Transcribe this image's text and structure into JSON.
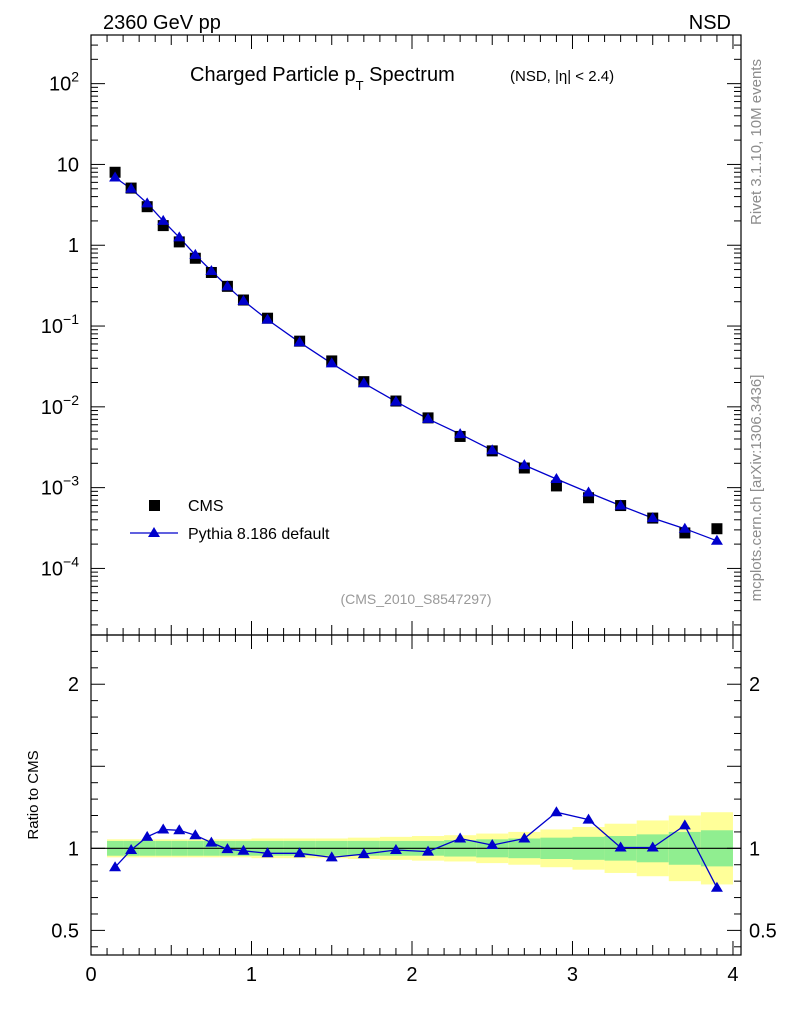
{
  "header": {
    "left_label": "2360 GeV pp",
    "right_label": "NSD"
  },
  "side_labels": {
    "rivet": "Rivet 3.1.10,  10M events",
    "mcplots": "mcplots.cern.ch [arXiv:1306.3436]"
  },
  "chart_data": [
    {
      "type": "scatter",
      "title": {
        "main": "Charged Particle p",
        "sub": "T",
        "tail": " Spectrum",
        "small": "(NSD, |η| < 2.4)"
      },
      "watermark": "(CMS_2010_S8547297)",
      "yscale": "log",
      "ylim": [
        1.5e-05,
        400
      ],
      "xlim": [
        0,
        4.05
      ],
      "xlabel": "",
      "ylabel": "",
      "y_tick_labels": [
        {
          "value": 100,
          "base": "10",
          "exp": "2"
        },
        {
          "value": 10,
          "base": "10",
          "exp": ""
        },
        {
          "value": 1,
          "base": "1",
          "exp": ""
        },
        {
          "value": 0.1,
          "base": "10",
          "exp": "−1"
        },
        {
          "value": 0.01,
          "base": "10",
          "exp": "−2"
        },
        {
          "value": 0.001,
          "base": "10",
          "exp": "−3"
        },
        {
          "value": 0.0001,
          "base": "10",
          "exp": "−4"
        }
      ],
      "legend": {
        "position": "bottom-left",
        "entries": [
          "CMS",
          "Pythia 8.186 default"
        ]
      },
      "x": [
        0.15,
        0.25,
        0.35,
        0.45,
        0.55,
        0.65,
        0.75,
        0.85,
        0.95,
        1.1,
        1.3,
        1.5,
        1.7,
        1.9,
        2.1,
        2.3,
        2.5,
        2.7,
        2.9,
        3.1,
        3.3,
        3.5,
        3.7,
        3.9
      ],
      "series": [
        {
          "name": "CMS",
          "marker": "square",
          "color": "#000000",
          "values": [
            8.0,
            5.1,
            3.0,
            1.75,
            1.1,
            0.69,
            0.46,
            0.31,
            0.21,
            0.125,
            0.065,
            0.037,
            0.0205,
            0.0118,
            0.0073,
            0.0043,
            0.00285,
            0.00175,
            0.00105,
            0.00075,
            0.0006,
            0.00042,
            0.000275,
            0.00031
          ]
        },
        {
          "name": "Pythia 8.186 default",
          "marker": "triangle",
          "color": "#0000cc",
          "values": [
            6.9,
            5.0,
            3.3,
            2.0,
            1.25,
            0.76,
            0.48,
            0.31,
            0.205,
            0.12,
            0.063,
            0.0345,
            0.0196,
            0.0116,
            0.0071,
            0.0046,
            0.0029,
            0.0019,
            0.00128,
            0.00087,
            0.0006,
            0.00042,
            0.00031,
            0.00022
          ]
        }
      ]
    },
    {
      "type": "line",
      "ylabel": "Ratio to CMS",
      "xlabel": "",
      "ylim": [
        0.35,
        2.3
      ],
      "xlim": [
        0,
        4.05
      ],
      "x_ticks": [
        0,
        1,
        2,
        3,
        4
      ],
      "x_tick_labels": [
        "0",
        "1",
        "2",
        "3",
        "4"
      ],
      "y_tick_labels": [
        {
          "value": 2,
          "label": "2"
        },
        {
          "value": 1,
          "label": "1"
        },
        {
          "value": 0.5,
          "label": "0.5"
        }
      ],
      "bin_edges": [
        0.1,
        0.2,
        0.3,
        0.4,
        0.5,
        0.6,
        0.7,
        0.8,
        0.9,
        1.0,
        1.2,
        1.4,
        1.6,
        1.8,
        2.0,
        2.2,
        2.4,
        2.6,
        2.8,
        3.0,
        3.2,
        3.4,
        3.6,
        3.8,
        4.0
      ],
      "band_inner": [
        0.045,
        0.045,
        0.045,
        0.045,
        0.045,
        0.045,
        0.045,
        0.045,
        0.045,
        0.045,
        0.045,
        0.045,
        0.045,
        0.045,
        0.045,
        0.05,
        0.055,
        0.06,
        0.065,
        0.07,
        0.075,
        0.085,
        0.1,
        0.11
      ],
      "band_outer": [
        0.055,
        0.055,
        0.055,
        0.055,
        0.055,
        0.055,
        0.055,
        0.055,
        0.055,
        0.06,
        0.06,
        0.06,
        0.065,
        0.07,
        0.075,
        0.08,
        0.09,
        0.1,
        0.115,
        0.13,
        0.15,
        0.17,
        0.2,
        0.22
      ],
      "band_colors": {
        "inner": "#90ee90",
        "outer": "#ffff99"
      },
      "x": [
        0.15,
        0.25,
        0.35,
        0.45,
        0.55,
        0.65,
        0.75,
        0.85,
        0.95,
        1.1,
        1.3,
        1.5,
        1.7,
        1.9,
        2.1,
        2.3,
        2.5,
        2.7,
        2.9,
        3.1,
        3.3,
        3.5,
        3.7,
        3.9
      ],
      "series": [
        {
          "name": "Pythia 8.186 default",
          "color": "#0000cc",
          "values": [
            0.885,
            0.99,
            1.07,
            1.115,
            1.11,
            1.08,
            1.035,
            0.995,
            0.985,
            0.97,
            0.97,
            0.945,
            0.965,
            0.99,
            0.98,
            1.06,
            1.02,
            1.06,
            1.22,
            1.175,
            1.005,
            1.005,
            1.14,
            0.76
          ]
        }
      ]
    }
  ]
}
